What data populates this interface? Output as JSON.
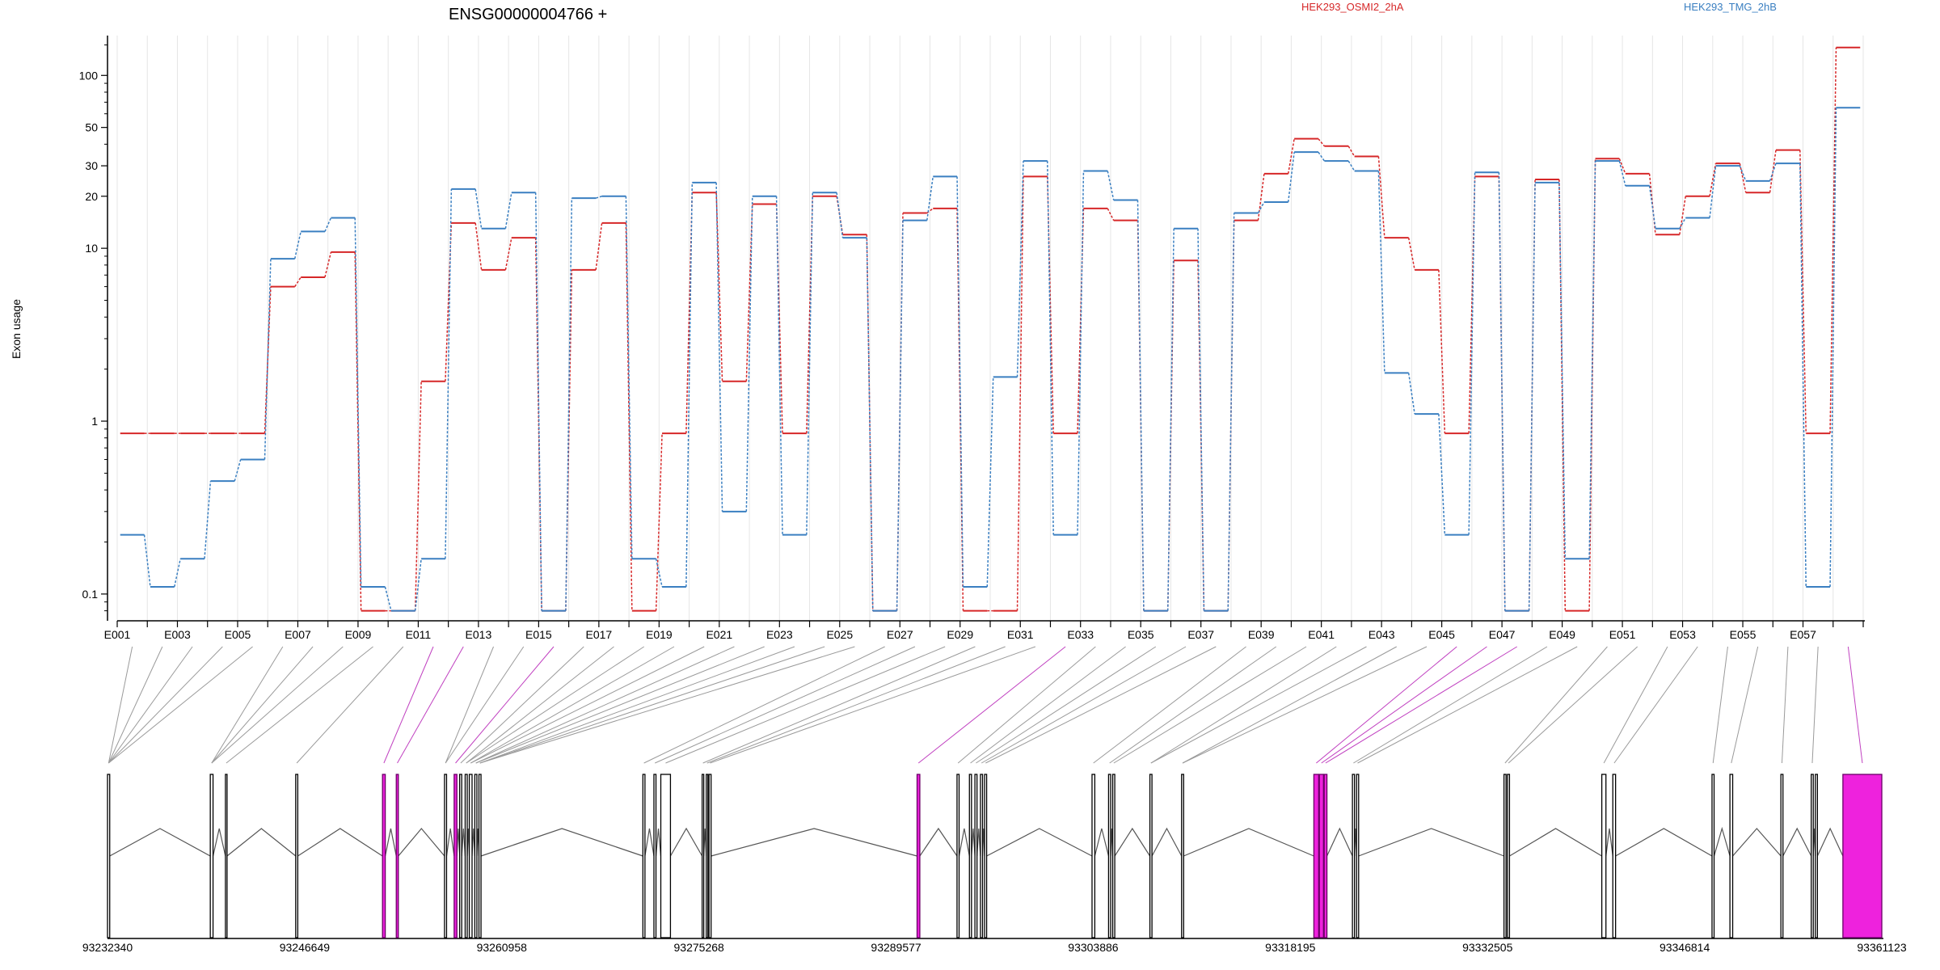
{
  "chart_data": {
    "type": "line",
    "title": "ENSG00000004766 +",
    "ylabel": "Exon usage",
    "yscale": "log",
    "ylim": [
      0.07,
      170
    ],
    "yticks": [
      "0.1",
      "1",
      "10",
      "20",
      "30",
      "50",
      "100"
    ],
    "categories": [
      "E001",
      "E002",
      "E003",
      "E004",
      "E005",
      "E006",
      "E007",
      "E008",
      "E009",
      "E010",
      "E011",
      "E012",
      "E013",
      "E014",
      "E015",
      "E016",
      "E017",
      "E018",
      "E019",
      "E020",
      "E021",
      "E022",
      "E023",
      "E024",
      "E025",
      "E026",
      "E027",
      "E028",
      "E029",
      "E030",
      "E031",
      "E032",
      "E033",
      "E034",
      "E035",
      "E036",
      "E037",
      "E038",
      "E039",
      "E040",
      "E041",
      "E042",
      "E043",
      "E044",
      "E045",
      "E046",
      "E047",
      "E048",
      "E049",
      "E050",
      "E051",
      "E052",
      "E053",
      "E054",
      "E055",
      "E056",
      "E057",
      "E058"
    ],
    "tick_labels": [
      "E001",
      "E003",
      "E005",
      "E007",
      "E009",
      "E011",
      "E013",
      "E015",
      "E017",
      "E019",
      "E021",
      "E023",
      "E025",
      "E027",
      "E029",
      "E031",
      "E033",
      "E035",
      "E037",
      "E039",
      "E041",
      "E043",
      "E045",
      "E047",
      "E049",
      "E051",
      "E053",
      "E055",
      "E057"
    ],
    "series": [
      {
        "name": "HEK293_OSMI2_2hA",
        "color": "#d62728",
        "values": [
          0.85,
          0.85,
          0.85,
          0.85,
          0.85,
          6.0,
          6.8,
          9.5,
          0.08,
          0.08,
          1.7,
          14,
          7.5,
          11.5,
          0.08,
          7.5,
          14,
          0.08,
          0.85,
          21,
          1.7,
          18,
          0.85,
          20,
          12,
          0.08,
          16,
          17,
          0.08,
          0.08,
          26,
          0.85,
          17,
          14.5,
          0.08,
          8.5,
          0.08,
          14.5,
          27,
          43,
          39,
          34,
          11.5,
          7.5,
          0.85,
          26,
          0.08,
          25,
          0.08,
          33,
          27,
          12,
          20,
          31,
          21,
          37,
          0.85,
          145
        ]
      },
      {
        "name": "HEK293_TMG_2hB",
        "color": "#3a7fc1",
        "values": [
          0.22,
          0.11,
          0.16,
          0.45,
          0.6,
          8.7,
          12.5,
          15,
          0.11,
          0.08,
          0.16,
          22,
          13,
          21,
          0.08,
          19.5,
          20,
          0.16,
          0.11,
          24,
          0.3,
          20,
          0.22,
          21,
          11.5,
          0.08,
          14.5,
          26,
          0.11,
          1.8,
          32,
          0.22,
          28,
          19,
          0.08,
          13,
          0.08,
          16,
          18.5,
          36,
          32,
          28,
          1.9,
          1.1,
          0.22,
          27.5,
          0.08,
          24,
          0.16,
          32,
          23,
          13,
          15,
          30,
          24.5,
          31,
          0.11,
          65
        ]
      }
    ],
    "genomic_ticks": [
      "93232340",
      "93246649",
      "93260958",
      "93275268",
      "93289577",
      "93303886",
      "93318195",
      "93332505",
      "93346814",
      "93361123"
    ],
    "genome_range": [
      93232340,
      93361123
    ],
    "exon_coords": [
      [
        93232340,
        93232500
      ],
      [
        93239800,
        93240000
      ],
      [
        93240900,
        93241000
      ],
      [
        93246000,
        93246150
      ],
      [
        93252300,
        93252500
      ],
      [
        93253300,
        93253450
      ],
      [
        93256800,
        93256950
      ],
      [
        93257500,
        93257700
      ],
      [
        93257900,
        93258050
      ],
      [
        93258300,
        93258450
      ],
      [
        93258600,
        93258800
      ],
      [
        93259000,
        93259150
      ],
      [
        93259300,
        93259450
      ],
      [
        93271200,
        93271350
      ],
      [
        93272000,
        93272150
      ],
      [
        93272500,
        93273200
      ],
      [
        93275500,
        93275600
      ],
      [
        93275800,
        93275900
      ],
      [
        93276000,
        93276150
      ],
      [
        93291100,
        93291300
      ],
      [
        93294000,
        93294150
      ],
      [
        93294900,
        93295050
      ],
      [
        93295300,
        93295450
      ],
      [
        93295700,
        93295850
      ],
      [
        93296000,
        93296150
      ],
      [
        93303800,
        93304000
      ],
      [
        93305000,
        93305150
      ],
      [
        93305300,
        93305450
      ],
      [
        93308000,
        93308150
      ],
      [
        93310300,
        93310450
      ],
      [
        93319900,
        93320250
      ],
      [
        93320300,
        93320600
      ],
      [
        93320650,
        93320850
      ],
      [
        93322700,
        93322850
      ],
      [
        93323000,
        93323150
      ],
      [
        93333700,
        93333850
      ],
      [
        93333950,
        93334100
      ],
      [
        93340800,
        93341100
      ],
      [
        93341600,
        93341800
      ],
      [
        93348800,
        93348950
      ],
      [
        93350100,
        93350300
      ],
      [
        93353800,
        93353950
      ],
      [
        93356000,
        93356150
      ],
      [
        93356300,
        93356450
      ],
      [
        93358300,
        93361123
      ]
    ],
    "highlight_exons": [
      4,
      5,
      7,
      19,
      30,
      31,
      32,
      44
    ],
    "highlight_color": "#ee22dd",
    "exon_link_targets": [
      0,
      0,
      0,
      0,
      0,
      1,
      1,
      1,
      2,
      3,
      4,
      5,
      6,
      6,
      7,
      8,
      9,
      9,
      10,
      10,
      11,
      11,
      12,
      12,
      12,
      13,
      14,
      15,
      16,
      17,
      18,
      19,
      20,
      21,
      22,
      23,
      24,
      25,
      26,
      27,
      28,
      28,
      29,
      29,
      30,
      31,
      32,
      33,
      34,
      35,
      36,
      37,
      38,
      39,
      40,
      41,
      42,
      44
    ],
    "legend_position": "top-right",
    "grid": "vertical"
  }
}
